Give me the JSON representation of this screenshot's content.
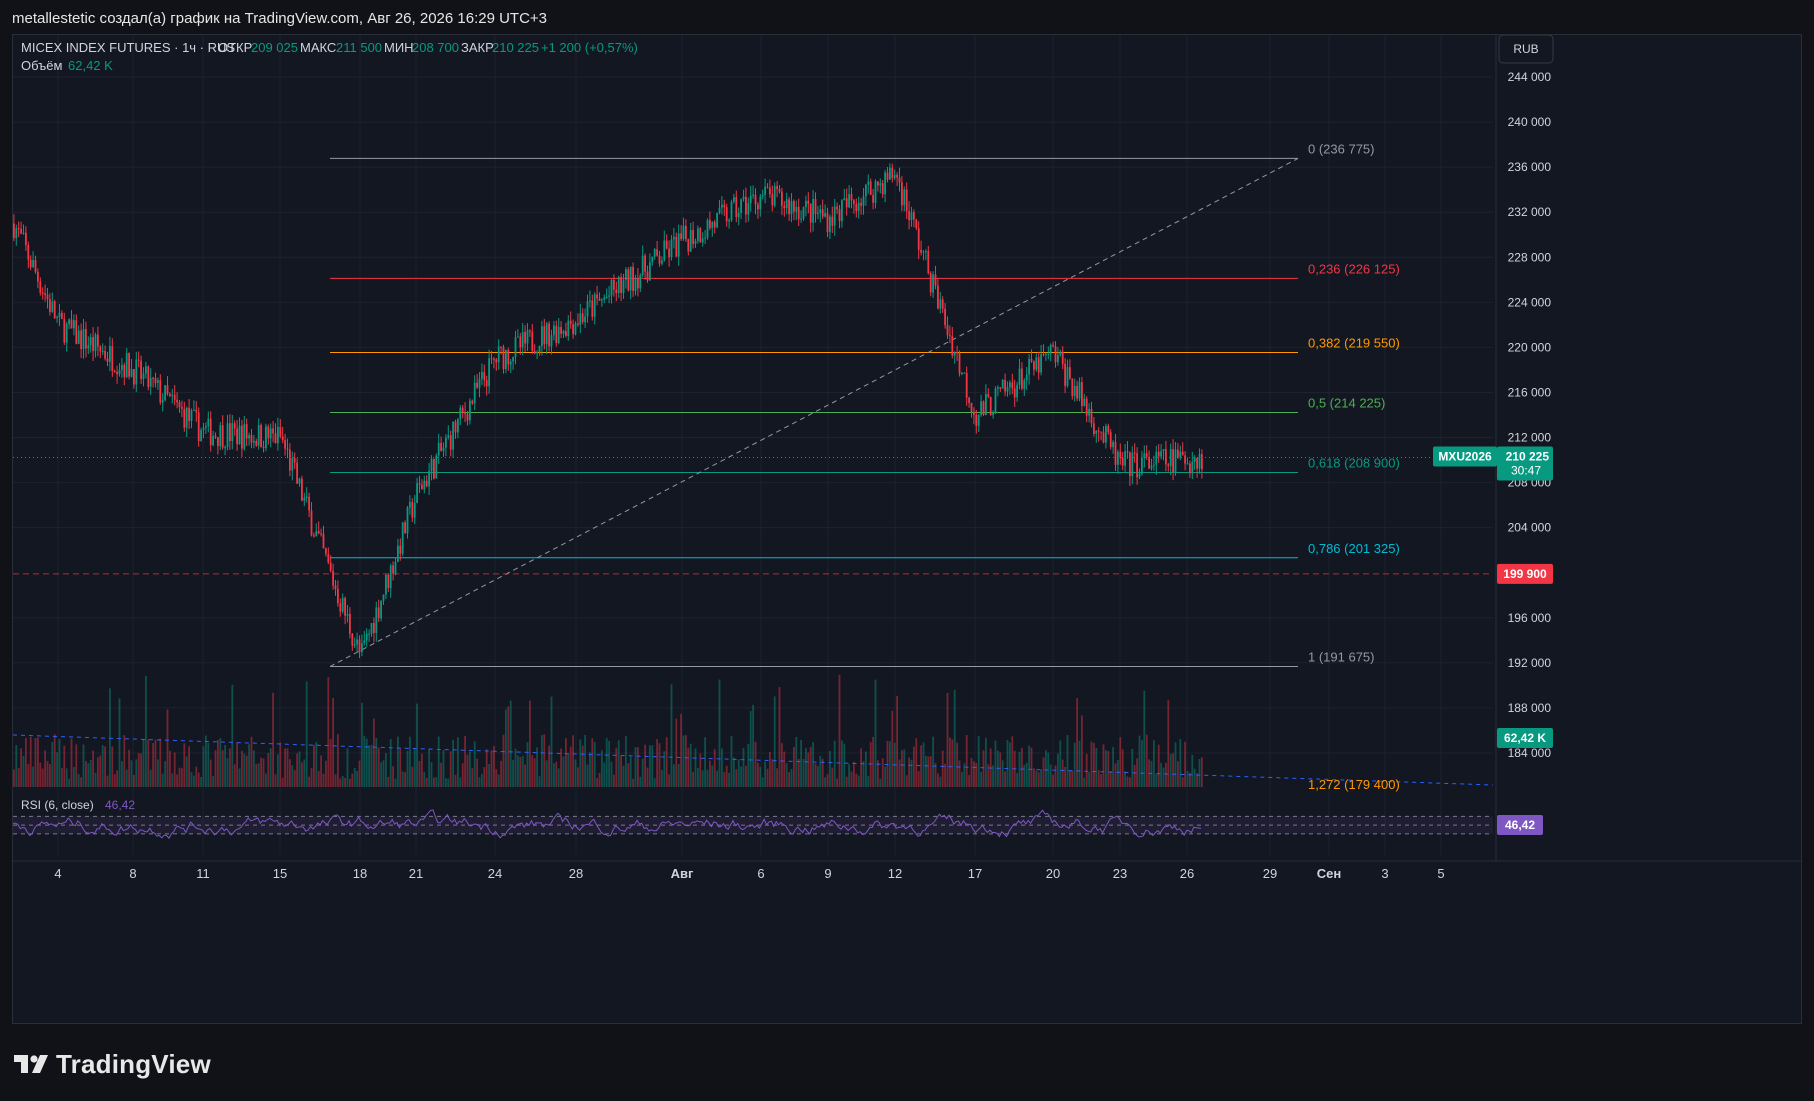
{
  "header": {
    "text": "metallestetic создал(а) график на TradingView.com, Авг 26, 2026 16:29 UTC+3"
  },
  "legend": {
    "symbol": "MICEX INDEX FUTURES · 1ч · RUS",
    "open_label": "ОТКР",
    "open": "209 025",
    "high_label": "МАКС",
    "high": "211 500",
    "low_label": "МИН",
    "low": "208 700",
    "close_label": "ЗАКР",
    "close": "210 225",
    "change": "+1 200 (+0,57%)",
    "volume_label": "Объём",
    "volume": "62,42 K"
  },
  "currency_button": "RUB",
  "price_axis": {
    "ticks": [
      "244 000",
      "240 000",
      "236 000",
      "232 000",
      "228 000",
      "224 000",
      "220 000",
      "216 000",
      "212 000",
      "208 000",
      "204 000",
      "196 000",
      "192 000",
      "188 000",
      "184 000"
    ]
  },
  "price_badges": {
    "symbol": "MXU2026",
    "last": "210 225",
    "timer": "30:47",
    "alert": "199 900",
    "volume": "62,42 K",
    "rsi": "46,42"
  },
  "fib_levels": [
    {
      "label": "0 (236 775)",
      "price": 236775,
      "color": "#9598a1"
    },
    {
      "label": "0,236 (226 125)",
      "price": 226125,
      "color": "#f23645"
    },
    {
      "label": "0,382 (219 550)",
      "price": 219550,
      "color": "#ff9800"
    },
    {
      "label": "0,5 (214 225)",
      "price": 214225,
      "color": "#4caf50"
    },
    {
      "label": "0,618 (208 900)",
      "price": 208900,
      "color": "#089981"
    },
    {
      "label": "0,786 (201 325)",
      "price": 201325,
      "color": "#00bcd4"
    },
    {
      "label": "1 (191 675)",
      "price": 191675,
      "color": "#9598a1"
    },
    {
      "label": "1,272 (179 400)",
      "price": 179400,
      "color": "#ff9800"
    }
  ],
  "rsi": {
    "label": "RSI (6, close)",
    "value": "46,42"
  },
  "time_axis": {
    "labels": [
      "4",
      "8",
      "11",
      "15",
      "18",
      "21",
      "24",
      "28",
      "Авг",
      "6",
      "9",
      "12",
      "17",
      "20",
      "23",
      "26",
      "29",
      "Сен",
      "3",
      "5"
    ]
  },
  "brand": {
    "name": "TradingView"
  },
  "chart_data": {
    "type": "candlestick",
    "title": "MICEX INDEX FUTURES",
    "interval": "1ч",
    "x": [
      "4",
      "8",
      "11",
      "15",
      "18",
      "21",
      "24",
      "28",
      "Авг",
      "6",
      "9",
      "12",
      "17",
      "20",
      "23",
      "26"
    ],
    "close": [
      222000,
      218000,
      212500,
      212000,
      192500,
      207000,
      219000,
      222500,
      229500,
      233500,
      231500,
      235500,
      214000,
      219500,
      209500,
      210225
    ],
    "ylim": [
      177500,
      246000
    ],
    "alert_price": 199900,
    "last_price": 210225,
    "indicators": [
      {
        "name": "Volume",
        "last": "62,42 K"
      },
      {
        "name": "RSI (6, close)",
        "last": 46.42,
        "bands": [
          30,
          50,
          70
        ]
      }
    ],
    "colors": {
      "up": "#089981",
      "down": "#f23645",
      "rsi": "#7e57c2"
    }
  }
}
